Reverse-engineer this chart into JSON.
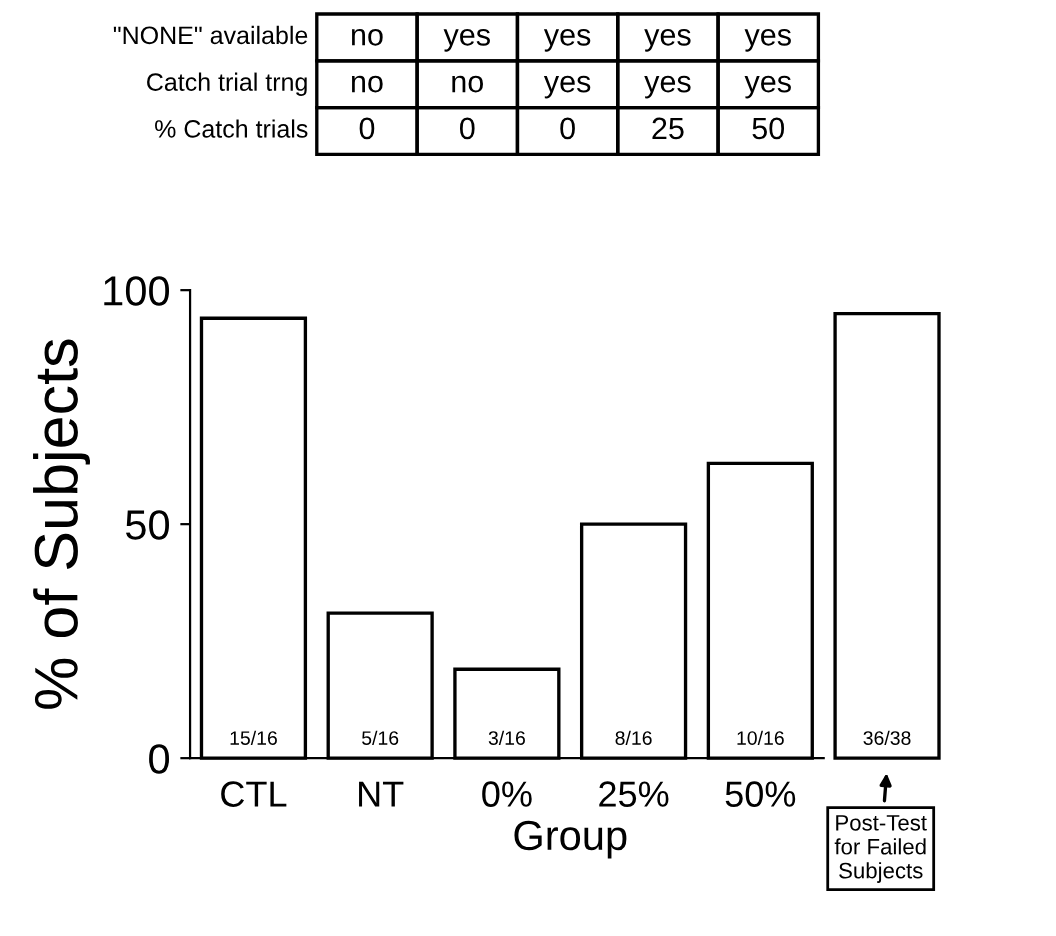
{
  "chart_data": {
    "type": "bar",
    "xlabel": "Group",
    "ylabel": "% of Subjects",
    "categories": [
      "CTL",
      "NT",
      "0%",
      "25%",
      "50%",
      null
    ],
    "values": [
      94,
      31,
      19,
      50,
      63,
      95
    ],
    "color": "#ffffff",
    "ylim": [
      0,
      100
    ],
    "yticks": [
      0,
      50,
      100
    ],
    "grid": false,
    "annotations": [
      "\"NONE\" available",
      "no",
      "yes",
      "yes",
      "yes",
      "yes",
      "Catch trial trng",
      "no",
      "no",
      "yes",
      "yes",
      "yes",
      "% Catch trials",
      "0",
      "0",
      "0",
      "25",
      "50",
      "15/16",
      "5/16",
      "3/16",
      "8/16",
      "10/16",
      "36/38",
      "Post-Test\nfor Failed\nSubjects"
    ]
  }
}
